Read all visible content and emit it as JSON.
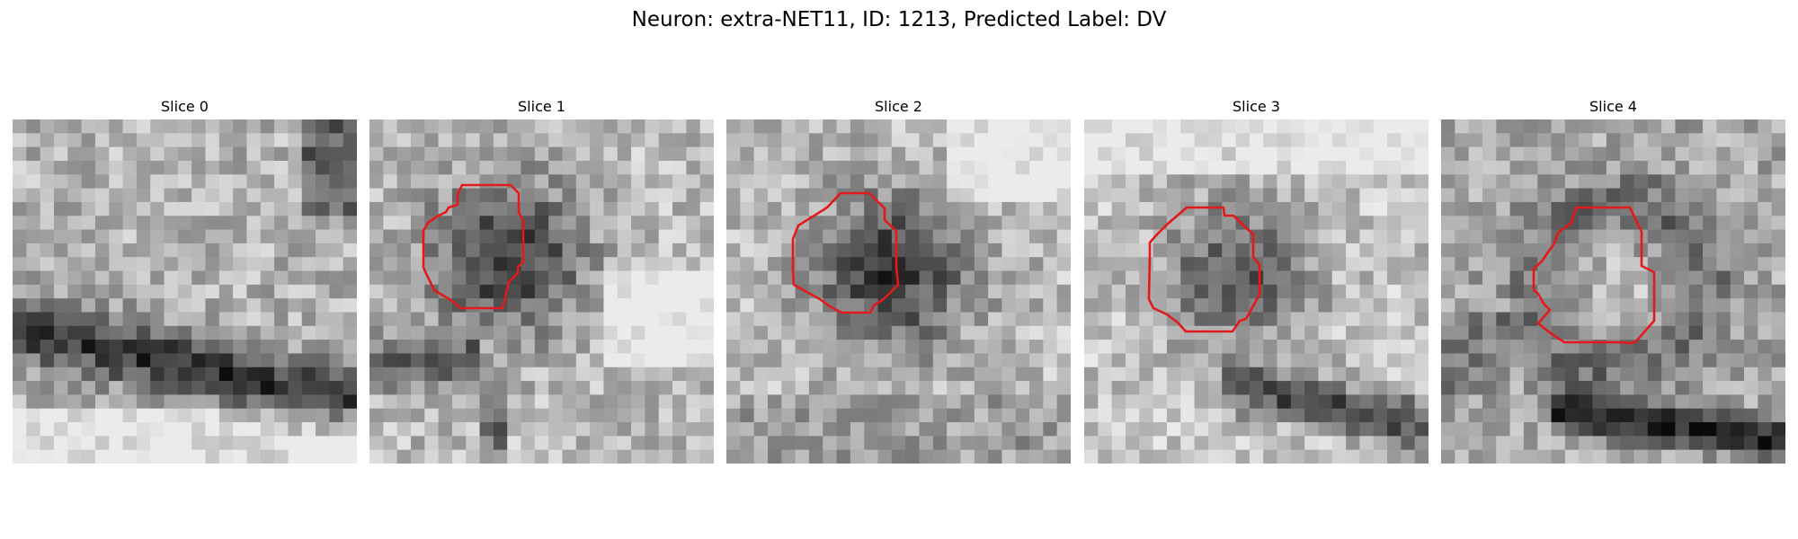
{
  "title": "Neuron: extra-NET11, ID: 1213, Predicted Label: DV",
  "contour_color": "#e31a1c",
  "slices": [
    {
      "label": "Slice 0",
      "has_contour": false
    },
    {
      "label": "Slice 1",
      "has_contour": true
    },
    {
      "label": "Slice 2",
      "has_contour": true
    },
    {
      "label": "Slice 3",
      "has_contour": true
    },
    {
      "label": "Slice 4",
      "has_contour": true
    }
  ]
}
